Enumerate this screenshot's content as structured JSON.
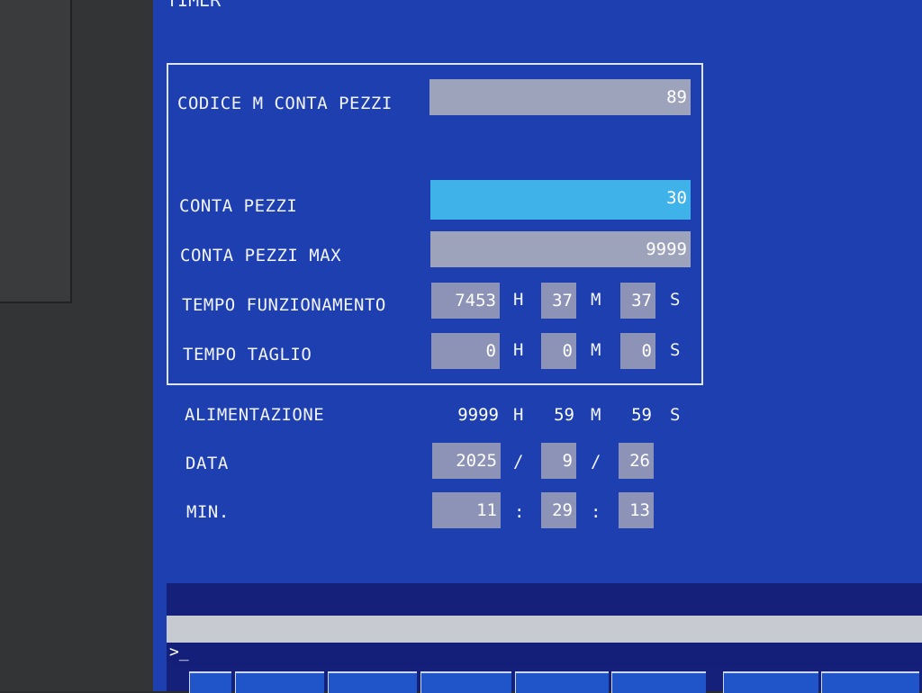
{
  "screen_title": "TIMER",
  "rows": {
    "codice_m": {
      "label": "CODICE M CONTA PEZZI",
      "value": "89"
    },
    "conta_pezzi": {
      "label": "CONTA PEZZI",
      "value": "30"
    },
    "conta_pezzi_max": {
      "label": "CONTA PEZZI MAX",
      "value": "9999"
    },
    "tempo_funz": {
      "label": "TEMPO FUNZIONAMENTO",
      "h": "7453",
      "m": "37",
      "s": "37"
    },
    "tempo_taglio": {
      "label": "TEMPO TAGLIO",
      "h": "0",
      "m": "0",
      "s": "0"
    },
    "alimentazione": {
      "label": "ALIMENTAZIONE",
      "h": "9999",
      "m": "59",
      "s": "59"
    },
    "data": {
      "label": "DATA",
      "y": "2025",
      "mo": "9",
      "d": "26"
    },
    "min": {
      "label": "MIN.",
      "h": "11",
      "m": "29",
      "s": "13"
    }
  },
  "units": {
    "h": "H",
    "m": "M",
    "s": "S",
    "date_sep": "/",
    "time_sep": ":"
  },
  "prompt": ">_",
  "colors": {
    "background": "#1e3fb0",
    "highlight": "#3fb2ea",
    "field": "#8c93b6"
  }
}
